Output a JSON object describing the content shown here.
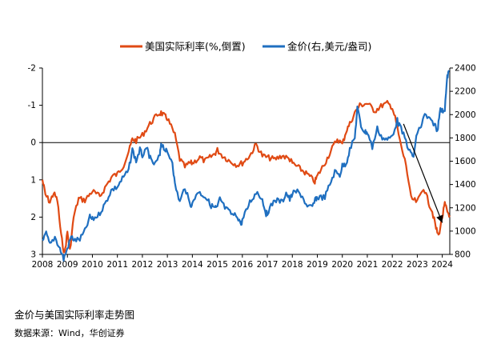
{
  "chart_data": {
    "type": "line",
    "legend": [
      "美国实际利率(%,倒置)",
      "金价(右,美元/盎司)"
    ],
    "legend_position": "top-center",
    "series": [
      {
        "name": "美国实际利率(%,倒置)",
        "axis": "left",
        "color": "#e04a14",
        "points": [
          [
            2008.0,
            1.0
          ],
          [
            2008.12,
            1.4
          ],
          [
            2008.3,
            1.6
          ],
          [
            2008.45,
            1.35
          ],
          [
            2008.6,
            1.55
          ],
          [
            2008.75,
            2.5
          ],
          [
            2008.88,
            3.0
          ],
          [
            2009.0,
            2.4
          ],
          [
            2009.1,
            2.9
          ],
          [
            2009.25,
            2.0
          ],
          [
            2009.45,
            1.5
          ],
          [
            2009.7,
            1.55
          ],
          [
            2010.0,
            1.3
          ],
          [
            2010.3,
            1.45
          ],
          [
            2010.6,
            1.1
          ],
          [
            2010.8,
            0.9
          ],
          [
            2011.0,
            0.85
          ],
          [
            2011.25,
            0.6
          ],
          [
            2011.5,
            0.15
          ],
          [
            2011.6,
            -0.1
          ],
          [
            2011.75,
            -0.05
          ],
          [
            2012.0,
            -0.2
          ],
          [
            2012.3,
            -0.5
          ],
          [
            2012.6,
            -0.75
          ],
          [
            2012.75,
            -0.8
          ],
          [
            2012.9,
            -0.7
          ],
          [
            2013.0,
            -0.65
          ],
          [
            2013.3,
            -0.2
          ],
          [
            2013.5,
            0.45
          ],
          [
            2013.7,
            0.65
          ],
          [
            2013.9,
            0.55
          ],
          [
            2014.0,
            0.55
          ],
          [
            2014.3,
            0.4
          ],
          [
            2014.5,
            0.5
          ],
          [
            2014.7,
            0.4
          ],
          [
            2014.9,
            0.3
          ],
          [
            2015.0,
            0.2
          ],
          [
            2015.2,
            0.35
          ],
          [
            2015.5,
            0.5
          ],
          [
            2015.8,
            0.6
          ],
          [
            2016.0,
            0.55
          ],
          [
            2016.3,
            0.35
          ],
          [
            2016.55,
            0.05
          ],
          [
            2016.8,
            0.35
          ],
          [
            2017.0,
            0.4
          ],
          [
            2017.3,
            0.45
          ],
          [
            2017.6,
            0.35
          ],
          [
            2017.9,
            0.45
          ],
          [
            2018.0,
            0.55
          ],
          [
            2018.3,
            0.7
          ],
          [
            2018.6,
            0.85
          ],
          [
            2018.9,
            1.05
          ],
          [
            2019.0,
            0.9
          ],
          [
            2019.3,
            0.55
          ],
          [
            2019.6,
            0.15
          ],
          [
            2019.8,
            -0.1
          ],
          [
            2020.0,
            0.05
          ],
          [
            2020.15,
            -0.3
          ],
          [
            2020.3,
            -0.5
          ],
          [
            2020.5,
            -0.8
          ],
          [
            2020.7,
            -1.0
          ],
          [
            2021.0,
            -1.05
          ],
          [
            2021.3,
            -0.85
          ],
          [
            2021.6,
            -1.0
          ],
          [
            2021.8,
            -1.05
          ],
          [
            2022.0,
            -0.95
          ],
          [
            2022.15,
            -0.55
          ],
          [
            2022.35,
            0.1
          ],
          [
            2022.55,
            0.6
          ],
          [
            2022.75,
            1.5
          ],
          [
            2023.0,
            1.6
          ],
          [
            2023.25,
            1.2
          ],
          [
            2023.45,
            1.6
          ],
          [
            2023.6,
            1.85
          ],
          [
            2023.75,
            2.3
          ],
          [
            2023.85,
            2.5
          ],
          [
            2024.0,
            2.0
          ],
          [
            2024.1,
            1.65
          ],
          [
            2024.2,
            1.85
          ],
          [
            2024.3,
            1.95
          ]
        ]
      },
      {
        "name": "金价(右,美元/盎司)",
        "axis": "right",
        "color": "#1f6fc0",
        "points": [
          [
            2008.0,
            900
          ],
          [
            2008.15,
            980
          ],
          [
            2008.3,
            880
          ],
          [
            2008.5,
            950
          ],
          [
            2008.7,
            850
          ],
          [
            2008.85,
            760
          ],
          [
            2009.0,
            850
          ],
          [
            2009.15,
            950
          ],
          [
            2009.3,
            920
          ],
          [
            2009.5,
            930
          ],
          [
            2009.7,
            1000
          ],
          [
            2009.9,
            1120
          ],
          [
            2010.0,
            1100
          ],
          [
            2010.25,
            1140
          ],
          [
            2010.5,
            1230
          ],
          [
            2010.75,
            1350
          ],
          [
            2011.0,
            1380
          ],
          [
            2011.2,
            1450
          ],
          [
            2011.45,
            1520
          ],
          [
            2011.6,
            1700
          ],
          [
            2011.75,
            1600
          ],
          [
            2011.9,
            1700
          ],
          [
            2012.0,
            1650
          ],
          [
            2012.2,
            1700
          ],
          [
            2012.35,
            1600
          ],
          [
            2012.5,
            1570
          ],
          [
            2012.7,
            1650
          ],
          [
            2012.75,
            1760
          ],
          [
            2012.9,
            1700
          ],
          [
            2013.0,
            1670
          ],
          [
            2013.2,
            1600
          ],
          [
            2013.3,
            1400
          ],
          [
            2013.5,
            1250
          ],
          [
            2013.7,
            1380
          ],
          [
            2013.9,
            1230
          ],
          [
            2014.0,
            1230
          ],
          [
            2014.2,
            1340
          ],
          [
            2014.5,
            1300
          ],
          [
            2014.75,
            1220
          ],
          [
            2014.9,
            1200
          ],
          [
            2015.0,
            1200
          ],
          [
            2015.1,
            1280
          ],
          [
            2015.3,
            1200
          ],
          [
            2015.6,
            1140
          ],
          [
            2015.8,
            1130
          ],
          [
            2015.95,
            1060
          ],
          [
            2016.0,
            1090
          ],
          [
            2016.3,
            1250
          ],
          [
            2016.6,
            1340
          ],
          [
            2016.8,
            1270
          ],
          [
            2016.95,
            1150
          ],
          [
            2017.0,
            1160
          ],
          [
            2017.3,
            1270
          ],
          [
            2017.6,
            1250
          ],
          [
            2017.75,
            1330
          ],
          [
            2017.9,
            1270
          ],
          [
            2018.0,
            1320
          ],
          [
            2018.2,
            1340
          ],
          [
            2018.4,
            1300
          ],
          [
            2018.6,
            1200
          ],
          [
            2018.8,
            1210
          ],
          [
            2018.95,
            1280
          ],
          [
            2019.0,
            1290
          ],
          [
            2019.3,
            1290
          ],
          [
            2019.5,
            1400
          ],
          [
            2019.7,
            1510
          ],
          [
            2019.9,
            1480
          ],
          [
            2020.0,
            1560
          ],
          [
            2020.15,
            1580
          ],
          [
            2020.3,
            1700
          ],
          [
            2020.5,
            1800
          ],
          [
            2020.6,
            2060
          ],
          [
            2020.75,
            1900
          ],
          [
            2020.9,
            1850
          ],
          [
            2021.0,
            1850
          ],
          [
            2021.2,
            1720
          ],
          [
            2021.4,
            1880
          ],
          [
            2021.6,
            1800
          ],
          [
            2021.8,
            1780
          ],
          [
            2022.0,
            1820
          ],
          [
            2022.2,
            1950
          ],
          [
            2022.3,
            1900
          ],
          [
            2022.5,
            1800
          ],
          [
            2022.7,
            1680
          ],
          [
            2022.85,
            1640
          ],
          [
            2023.0,
            1850
          ],
          [
            2023.15,
            1900
          ],
          [
            2023.3,
            2000
          ],
          [
            2023.5,
            1950
          ],
          [
            2023.7,
            1920
          ],
          [
            2023.8,
            1850
          ],
          [
            2023.9,
            2040
          ],
          [
            2024.0,
            2030
          ],
          [
            2024.1,
            2050
          ],
          [
            2024.2,
            2320
          ],
          [
            2024.27,
            2380
          ]
        ]
      }
    ],
    "annotation": {
      "type": "arrow",
      "description": "趋势箭头",
      "from": [
        2022.45,
        -0.5
      ],
      "to": [
        2024.0,
        2.15
      ]
    },
    "x_axis": {
      "ticks": [
        "2008",
        "2009",
        "2010",
        "2011",
        "2012",
        "2013",
        "2014",
        "2015",
        "2016",
        "2017",
        "2018",
        "2019",
        "2020",
        "2021",
        "2022",
        "2023",
        "2024"
      ],
      "range": [
        2008,
        2024.3
      ]
    },
    "y_left": {
      "ticks": [
        "-2",
        "-1",
        "0",
        "1",
        "2",
        "3"
      ],
      "range": [
        -2,
        3
      ],
      "inverted": true
    },
    "y_right": {
      "ticks": [
        "2400",
        "2200",
        "2000",
        "1800",
        "1600",
        "1400",
        "1200",
        "1000",
        "800"
      ],
      "range": [
        800,
        2400
      ]
    }
  },
  "caption": {
    "title": "金价与美国实际利率走势图",
    "source": "数据来源：Wind，华创证券"
  }
}
